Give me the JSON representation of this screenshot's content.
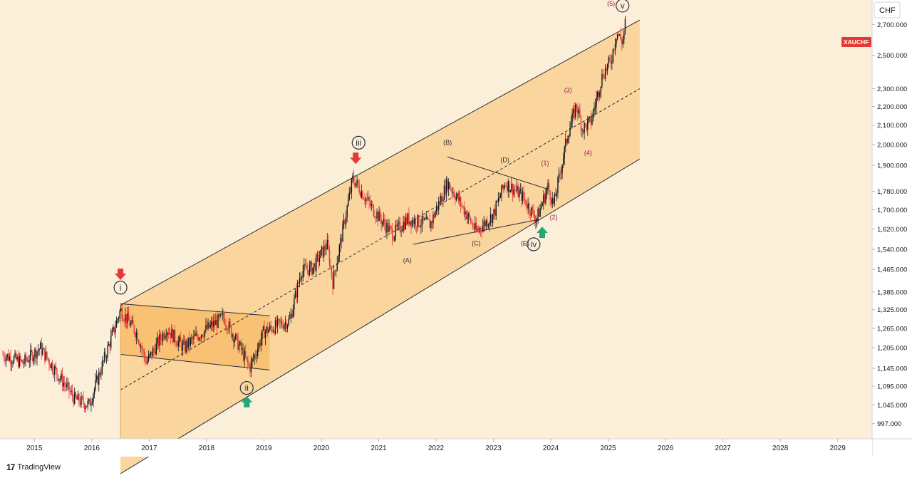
{
  "header": {
    "currency_label": "CHF",
    "symbol_badge": "XAUCHF"
  },
  "footer": {
    "brand": "TradingView",
    "brand_mark": "17"
  },
  "colors": {
    "background": "#fcefd9",
    "channel_fill": "#fbd39b",
    "flag_fill": "#f7bf6e",
    "candle_up": "#131722",
    "candle_down": "#e53935",
    "arrow_down": "#e53935",
    "arrow_up": "#22a67a",
    "wave_minor": "#9c1f4a",
    "axis_text": "#131722",
    "badge": "#e53935"
  },
  "chart_data": {
    "type": "candlestick",
    "title": "",
    "xlabel": "",
    "ylabel": "",
    "scale": "log",
    "x_ticks": [
      "2015",
      "2016",
      "2017",
      "2018",
      "2019",
      "2020",
      "2021",
      "2022",
      "2023",
      "2024",
      "2025",
      "2026",
      "2027",
      "2028",
      "2029"
    ],
    "y_ticks": [
      "2,700.000",
      "2,500.000",
      "2,300.000",
      "2,200.000",
      "2,100.000",
      "2,000.000",
      "1,900.000",
      "1,780.000",
      "1,700.000",
      "1,620.000",
      "1,540.000",
      "1,465.000",
      "1,385.000",
      "1,325.000",
      "1,265.000",
      "1,205.000",
      "1,145.000",
      "1,095.000",
      "1,045.000",
      "997.000"
    ],
    "xlim": [
      2014.4,
      2029.6
    ],
    "ylim": [
      960,
      2870
    ],
    "price_path": [
      [
        2014.45,
        1185
      ],
      [
        2014.8,
        1160
      ],
      [
        2015.1,
        1205
      ],
      [
        2015.4,
        1130
      ],
      [
        2015.7,
        1060
      ],
      [
        2015.95,
        1045
      ],
      [
        2016.05,
        1090
      ],
      [
        2016.35,
        1240
      ],
      [
        2016.5,
        1325
      ],
      [
        2016.8,
        1245
      ],
      [
        2016.95,
        1160
      ],
      [
        2017.3,
        1265
      ],
      [
        2017.6,
        1205
      ],
      [
        2017.9,
        1250
      ],
      [
        2018.3,
        1300
      ],
      [
        2018.6,
        1200
      ],
      [
        2018.75,
        1145
      ],
      [
        2019.0,
        1255
      ],
      [
        2019.45,
        1290
      ],
      [
        2019.65,
        1460
      ],
      [
        2019.85,
        1470
      ],
      [
        2020.1,
        1560
      ],
      [
        2020.2,
        1420
      ],
      [
        2020.55,
        1840
      ],
      [
        2020.85,
        1720
      ],
      [
        2021.1,
        1640
      ],
      [
        2021.25,
        1600
      ],
      [
        2021.5,
        1660
      ],
      [
        2021.9,
        1640
      ],
      [
        2022.2,
        1820
      ],
      [
        2022.4,
        1740
      ],
      [
        2022.7,
        1610
      ],
      [
        2023.0,
        1680
      ],
      [
        2023.2,
        1820
      ],
      [
        2023.5,
        1760
      ],
      [
        2023.75,
        1660
      ],
      [
        2023.95,
        1800
      ],
      [
        2024.05,
        1720
      ],
      [
        2024.3,
        2060
      ],
      [
        2024.45,
        2210
      ],
      [
        2024.55,
        2080
      ],
      [
        2024.7,
        2120
      ],
      [
        2024.9,
        2380
      ],
      [
        2025.05,
        2470
      ],
      [
        2025.15,
        2650
      ],
      [
        2025.25,
        2580
      ],
      [
        2025.3,
        2720
      ]
    ],
    "channel": {
      "upper": [
        [
          2016.5,
          1340
        ],
        [
          2025.55,
          2730
        ]
      ],
      "lower": [
        [
          2016.5,
          880
        ],
        [
          2025.55,
          1930
        ]
      ],
      "midline": [
        [
          2016.5,
          1085
        ],
        [
          2025.55,
          2300
        ]
      ]
    },
    "flag": {
      "upper": [
        [
          2016.5,
          1345
        ],
        [
          2019.1,
          1305
        ]
      ],
      "lower": [
        [
          2016.5,
          1185
        ],
        [
          2019.1,
          1140
        ]
      ]
    },
    "triangle": {
      "upper": [
        [
          2022.2,
          1940
        ],
        [
          2023.95,
          1790
        ]
      ],
      "lower": [
        [
          2021.6,
          1560
        ],
        [
          2023.8,
          1660
        ]
      ]
    },
    "annotations": [
      {
        "label": "i",
        "x": 2016.5,
        "y": 1400,
        "style": "circle"
      },
      {
        "label": "ii",
        "x": 2018.7,
        "y": 1090,
        "style": "circle"
      },
      {
        "label": "iii",
        "x": 2020.65,
        "y": 2010,
        "style": "circle"
      },
      {
        "label": "iv",
        "x": 2023.7,
        "y": 1560,
        "style": "circle"
      },
      {
        "label": "v",
        "x": 2025.25,
        "y": 2830,
        "style": "circle"
      },
      {
        "label": "(A)",
        "x": 2021.5,
        "y": 1490,
        "style": "text"
      },
      {
        "label": "(B)",
        "x": 2022.2,
        "y": 2000,
        "style": "text"
      },
      {
        "label": "(C)",
        "x": 2022.7,
        "y": 1555,
        "style": "text"
      },
      {
        "label": "(D)",
        "x": 2023.2,
        "y": 1915,
        "style": "text"
      },
      {
        "label": "(E)",
        "x": 2023.55,
        "y": 1555,
        "style": "text"
      },
      {
        "label": "(1)",
        "x": 2023.9,
        "y": 1900,
        "style": "minor"
      },
      {
        "label": "(2)",
        "x": 2024.05,
        "y": 1660,
        "style": "minor"
      },
      {
        "label": "(3)",
        "x": 2024.3,
        "y": 2280,
        "style": "minor"
      },
      {
        "label": "(4)",
        "x": 2024.65,
        "y": 1950,
        "style": "minor"
      },
      {
        "label": "(5)",
        "x": 2025.05,
        "y": 2830,
        "style": "minor"
      }
    ],
    "arrows": [
      {
        "direction": "down",
        "x": 2016.5,
        "y": 1445
      },
      {
        "direction": "up",
        "x": 2018.7,
        "y": 1055
      },
      {
        "direction": "down",
        "x": 2020.6,
        "y": 1930
      },
      {
        "direction": "up",
        "x": 2023.85,
        "y": 1610
      }
    ]
  }
}
